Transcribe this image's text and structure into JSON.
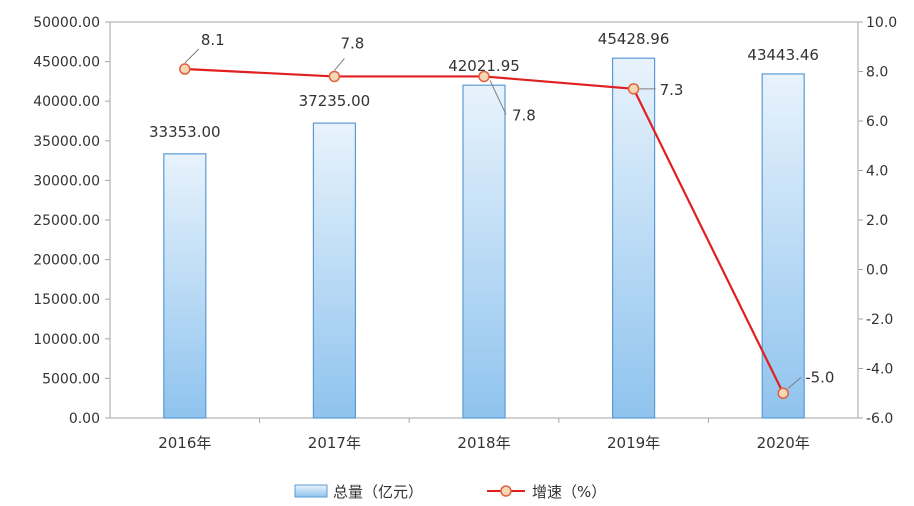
{
  "chart_data": {
    "type": "bar",
    "categories": [
      "2016年",
      "2017年",
      "2018年",
      "2019年",
      "2020年"
    ],
    "series": [
      {
        "name": "总量（亿元）",
        "type": "bar",
        "axis": "left",
        "values": [
          33353.0,
          37235.0,
          42021.95,
          45428.96,
          43443.46
        ],
        "labels": [
          "33353.00",
          "37235.00",
          "42021.95",
          "45428.96",
          "43443.46"
        ],
        "color": "#5b9bd5"
      },
      {
        "name": "增速（%）",
        "type": "line",
        "axis": "right",
        "values": [
          8.1,
          7.8,
          7.8,
          7.3,
          -5.0
        ],
        "labels": [
          "8.1",
          "7.8",
          "7.8",
          "7.3",
          "-5.0"
        ],
        "color": "#e02020"
      }
    ],
    "y_left": {
      "min": 0,
      "max": 50000,
      "ticks": [
        0,
        5000,
        10000,
        15000,
        20000,
        25000,
        30000,
        35000,
        40000,
        45000,
        50000
      ],
      "tick_labels": [
        "0.00",
        "5000.00",
        "10000.00",
        "15000.00",
        "20000.00",
        "25000.00",
        "30000.00",
        "35000.00",
        "40000.00",
        "45000.00",
        "50000.00"
      ]
    },
    "y_right": {
      "min": -6,
      "max": 10,
      "ticks": [
        -6,
        -4,
        -2,
        0,
        2,
        4,
        6,
        8,
        10
      ],
      "tick_labels": [
        "-6.0",
        "-4.0",
        "-2.0",
        "0.0",
        "2.0",
        "4.0",
        "6.0",
        "8.0",
        "10.0"
      ]
    },
    "grid": false,
    "legend": "bottom",
    "title": "",
    "xlabel": "",
    "ylabel": ""
  }
}
